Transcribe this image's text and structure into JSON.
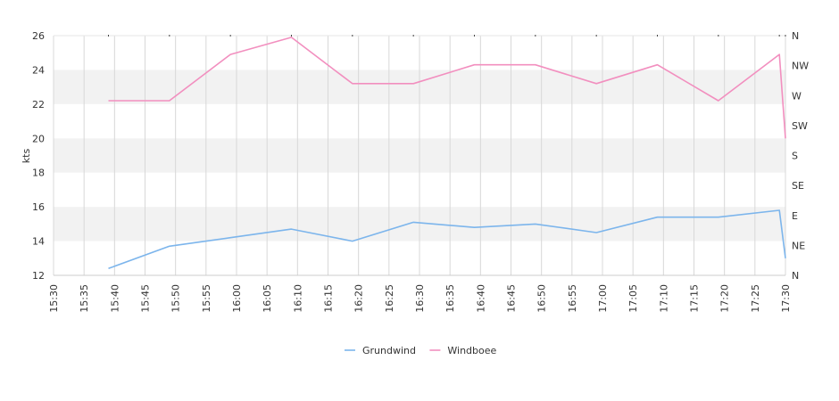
{
  "chart_data": {
    "type": "line",
    "ylabel": "kts",
    "ylim": [
      12,
      26
    ],
    "y_ticks": [
      12,
      14,
      16,
      18,
      20,
      22,
      24,
      26
    ],
    "x_ticks": [
      "15:30",
      "15:35",
      "15:40",
      "15:45",
      "15:50",
      "15:55",
      "16:00",
      "16:05",
      "16:10",
      "16:15",
      "16:20",
      "16:25",
      "16:30",
      "16:35",
      "16:40",
      "16:45",
      "16:50",
      "16:55",
      "17:00",
      "17:05",
      "17:10",
      "17:15",
      "17:20",
      "17:25",
      "17:30"
    ],
    "right_axis_labels": [
      "N",
      "NE",
      "E",
      "SE",
      "S",
      "SW",
      "W",
      "NW",
      "N"
    ],
    "grid": true,
    "alternating_bands": true,
    "legend_position": "bottom",
    "series": [
      {
        "name": "Grundwind",
        "color": "#7cb5ec",
        "points": [
          [
            "15:39",
            12.4
          ],
          [
            "15:49",
            13.7
          ],
          [
            "15:59",
            14.2
          ],
          [
            "16:09",
            14.7
          ],
          [
            "16:19",
            14.0
          ],
          [
            "16:29",
            15.1
          ],
          [
            "16:39",
            14.8
          ],
          [
            "16:49",
            15.0
          ],
          [
            "16:59",
            14.5
          ],
          [
            "17:09",
            15.4
          ],
          [
            "17:19",
            15.4
          ],
          [
            "17:29",
            15.8
          ],
          [
            "17:30",
            13.0
          ]
        ]
      },
      {
        "name": "Windboee",
        "color": "#f28fbf",
        "points": [
          [
            "15:39",
            22.2
          ],
          [
            "15:49",
            22.2
          ],
          [
            "15:59",
            24.9
          ],
          [
            "16:09",
            25.9
          ],
          [
            "16:19",
            23.2
          ],
          [
            "16:29",
            23.2
          ],
          [
            "16:39",
            24.3
          ],
          [
            "16:49",
            24.3
          ],
          [
            "16:59",
            23.2
          ],
          [
            "17:09",
            24.3
          ],
          [
            "17:19",
            22.2
          ],
          [
            "17:29",
            24.9
          ],
          [
            "17:30",
            20.0
          ]
        ]
      }
    ]
  }
}
